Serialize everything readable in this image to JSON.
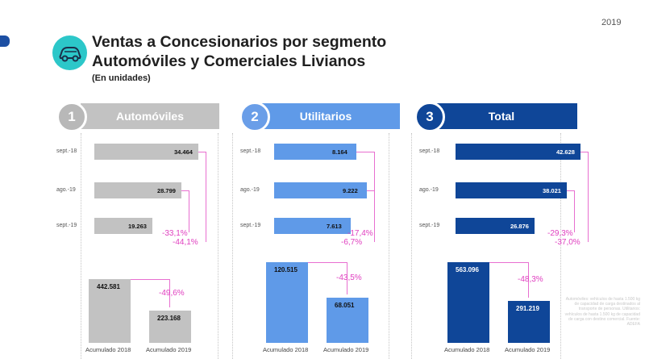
{
  "year": "2019",
  "title_line1": "Ventas a Concesionarios por segmento",
  "title_line2": "Automóviles y Comerciales Livianos",
  "subtitle": "(En unidades)",
  "header_icon": "car-icon",
  "colors": {
    "automoviles": "#c2c2c2",
    "automoviles_badge": "#b8b8b8",
    "utilitarios": "#5f9ae8",
    "utilitarios_badge": "#6a9ee8",
    "total": "#0f4698",
    "total_badge": "#0f4698",
    "variation": "#e040c0"
  },
  "footnote": "Automóviles: vehículos de hasta 1.500 kg de capacidad de carga destinados al transporte de personas. Utilitarios: vehículos de hasta 1.500 kg de capacidad de carga con destino comercial. Fuente: ADEFA",
  "chart_data": [
    {
      "type": "bar",
      "orientation": "horizontal",
      "title": "Automóviles",
      "number": "1",
      "categories": [
        "sept.-18",
        "ago.-19",
        "sept.-19"
      ],
      "values": [
        34464,
        28799,
        19263
      ],
      "labels": [
        "34.464",
        "28.799",
        "19.263"
      ],
      "variations": [
        "-33,1%",
        "-44,1%"
      ],
      "xlim": [
        0,
        42628
      ]
    },
    {
      "type": "bar",
      "orientation": "horizontal",
      "title": "Utilitarios",
      "number": "2",
      "categories": [
        "sept.-18",
        "ago.-19",
        "sept.-19"
      ],
      "values": [
        8164,
        9222,
        7613
      ],
      "labels": [
        "8.164",
        "9.222",
        "7.613"
      ],
      "variations": [
        "-17,4%",
        "-6,7%"
      ],
      "xlim": [
        0,
        9222
      ]
    },
    {
      "type": "bar",
      "orientation": "horizontal",
      "title": "Total",
      "number": "3",
      "categories": [
        "sept.-18",
        "ago.-19",
        "sept.-19"
      ],
      "values": [
        42628,
        38021,
        26876
      ],
      "labels": [
        "42.628",
        "38.021",
        "26.876"
      ],
      "variations": [
        "-29,3%",
        "-37,0%"
      ],
      "xlim": [
        0,
        42628
      ]
    },
    {
      "type": "bar",
      "categories": [
        "Acumulado 2018",
        "Acumulado 2019"
      ],
      "values": [
        442581,
        223168
      ],
      "labels": [
        "442.581",
        "223.168"
      ],
      "variation": "-49,6%",
      "ylim": [
        0,
        563096
      ]
    },
    {
      "type": "bar",
      "categories": [
        "Acumulado 2018",
        "Acumulado 2019"
      ],
      "values": [
        120515,
        68051
      ],
      "labels": [
        "120.515",
        "68.051"
      ],
      "variation": "-43,5%",
      "ylim": [
        0,
        120515
      ]
    },
    {
      "type": "bar",
      "categories": [
        "Acumulado 2018",
        "Acumulado 2019"
      ],
      "values": [
        563096,
        291219
      ],
      "labels": [
        "563.096",
        "291.219"
      ],
      "variation": "-48,3%",
      "ylim": [
        0,
        563096
      ]
    }
  ]
}
